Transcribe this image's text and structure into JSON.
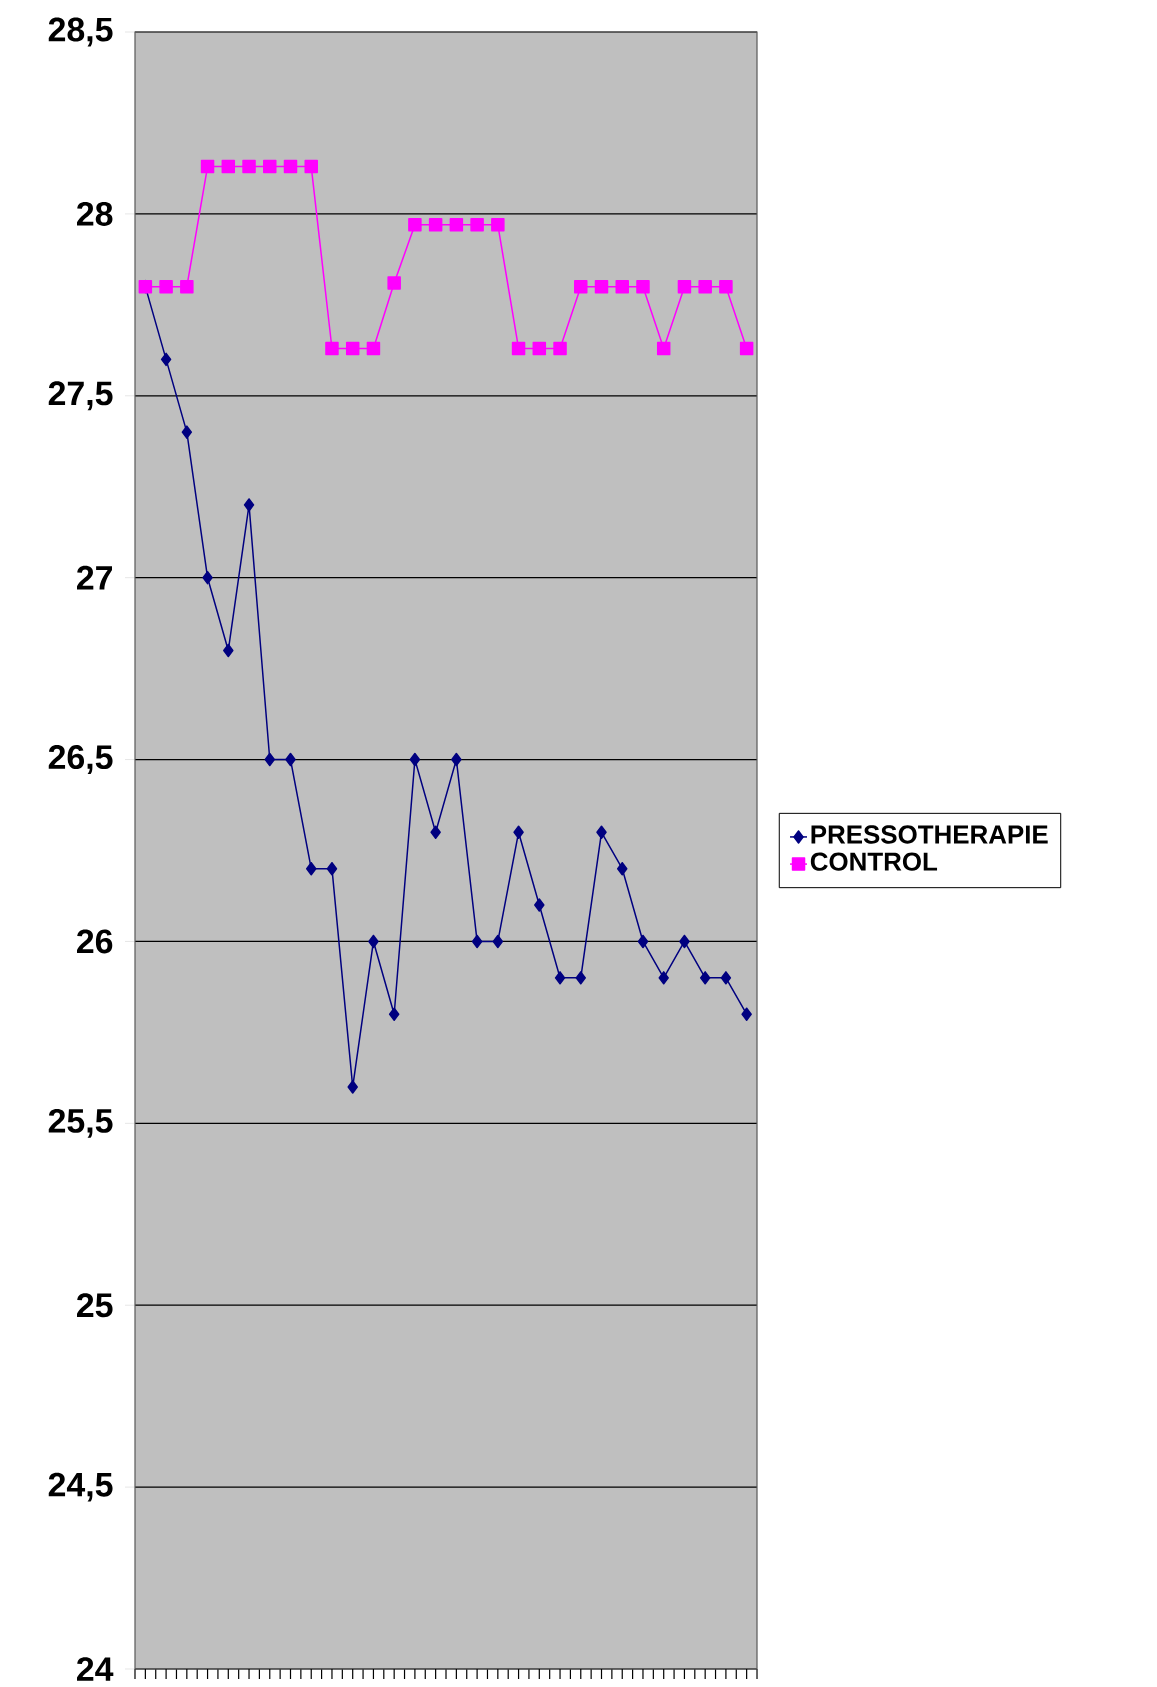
{
  "chart_data": {
    "type": "line",
    "categories": [
      null,
      null,
      null,
      null,
      null,
      null,
      null,
      null,
      null,
      null,
      null,
      null,
      null,
      null,
      null,
      null,
      null,
      null,
      null,
      null,
      null,
      null,
      null,
      null,
      null,
      null,
      null,
      null,
      null,
      null
    ],
    "series": [
      {
        "name": "PRESSOTHERAPIE",
        "color": "#000080",
        "marker": "diamond",
        "values": [
          27.8,
          27.6,
          27.4,
          27.0,
          26.8,
          27.2,
          26.5,
          26.5,
          26.2,
          26.2,
          25.6,
          26.0,
          25.8,
          26.5,
          26.3,
          26.5,
          26.0,
          26.0,
          26.3,
          26.1,
          25.9,
          25.9,
          26.3,
          26.2,
          26.0,
          25.9,
          26.0,
          25.9,
          25.9,
          25.8
        ]
      },
      {
        "name": "CONTROL",
        "color": "#ff00ff",
        "marker": "square",
        "values": [
          27.8,
          27.8,
          27.8,
          28.13,
          28.13,
          28.13,
          28.13,
          28.13,
          28.13,
          27.63,
          27.63,
          27.63,
          27.81,
          27.97,
          27.97,
          27.97,
          27.97,
          27.97,
          27.63,
          27.63,
          27.63,
          27.8,
          27.8,
          27.8,
          27.8,
          27.63,
          27.8,
          27.8,
          27.8,
          27.63
        ]
      }
    ],
    "ylim": [
      24,
      28.5
    ],
    "yticks": [
      {
        "value": 24,
        "label": "24"
      },
      {
        "value": 24.5,
        "label": "24,5"
      },
      {
        "value": 25,
        "label": "25"
      },
      {
        "value": 25.5,
        "label": "25,5"
      },
      {
        "value": 26,
        "label": "26"
      },
      {
        "value": 26.5,
        "label": "26,5"
      },
      {
        "value": 27,
        "label": "27"
      },
      {
        "value": 27.5,
        "label": "27,5"
      },
      {
        "value": 28,
        "label": "28"
      },
      {
        "value": 28.5,
        "label": "28,5"
      }
    ],
    "grid": "y",
    "legend": "right",
    "line_style": "solid"
  }
}
